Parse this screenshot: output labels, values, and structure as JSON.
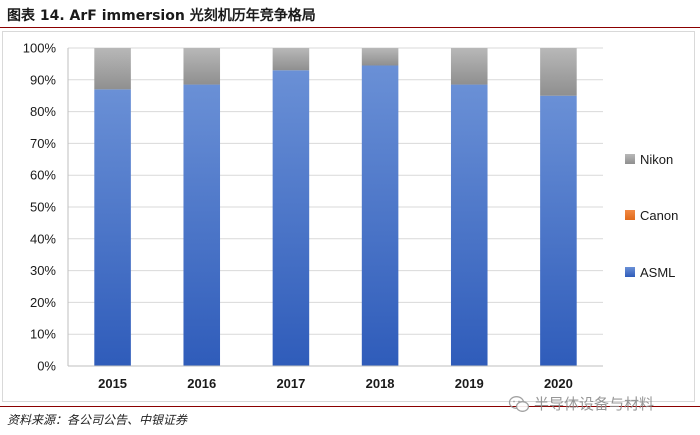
{
  "figure": {
    "title": "图表 14. ArF immersion 光刻机历年竞争格局",
    "source": "资料来源：各公司公告、中银证券",
    "watermark": "半导体设备与材料",
    "watermark_icon": "wechat-icon"
  },
  "chart_data": {
    "type": "bar",
    "stacked": true,
    "categories": [
      "2015",
      "2016",
      "2017",
      "2018",
      "2019",
      "2020"
    ],
    "series": [
      {
        "name": "ASML",
        "color": "#4472c4",
        "values": [
          87,
          88.5,
          93,
          94.5,
          88.5,
          85
        ]
      },
      {
        "name": "Canon",
        "color": "#ed7d31",
        "values": [
          0,
          0,
          0,
          0,
          0,
          0
        ]
      },
      {
        "name": "Nikon",
        "color": "#a5a5a5",
        "values": [
          13,
          11.5,
          7,
          5.5,
          11.5,
          15
        ]
      }
    ],
    "ylim": [
      0,
      100
    ],
    "yticks": [
      "0%",
      "10%",
      "20%",
      "30%",
      "40%",
      "50%",
      "60%",
      "70%",
      "80%",
      "90%",
      "100%"
    ],
    "xlabel": "",
    "ylabel": "",
    "grid": true,
    "legend_position": "right",
    "legend_order": [
      "Nikon",
      "Canon",
      "ASML"
    ]
  }
}
